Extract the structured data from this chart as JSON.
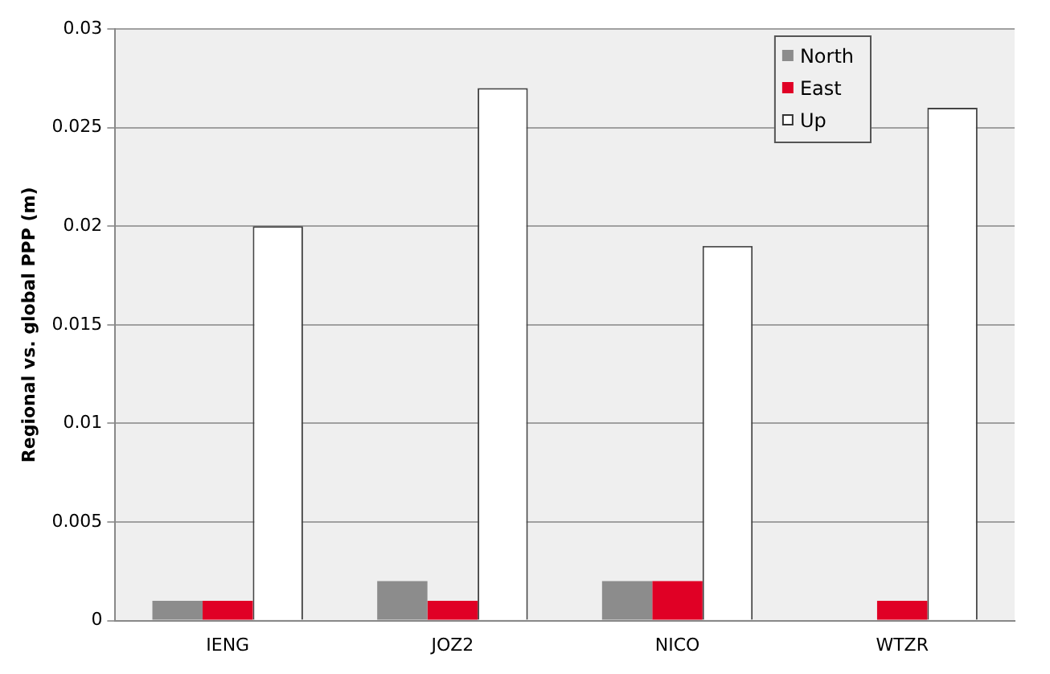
{
  "chart_data": {
    "type": "bar",
    "ylabel": "Regional vs. global PPP (m)",
    "categories": [
      "IENG",
      "JOZ2",
      "NICO",
      "WTZR"
    ],
    "series": [
      {
        "name": "North",
        "color": "#8c8c8c",
        "values": [
          0.001,
          0.002,
          0.002,
          0
        ]
      },
      {
        "name": "East",
        "color": "#e00025",
        "values": [
          0.001,
          0.001,
          0.002,
          0.001
        ]
      },
      {
        "name": "Up",
        "color": "#ffffff",
        "values": [
          0.02,
          0.027,
          0.019,
          0.026
        ]
      }
    ],
    "ylim": [
      0,
      0.03
    ],
    "yticks": [
      0,
      0.005,
      0.01,
      0.015,
      0.02,
      0.025,
      0.03
    ],
    "grid": "y",
    "legend": "top right"
  }
}
